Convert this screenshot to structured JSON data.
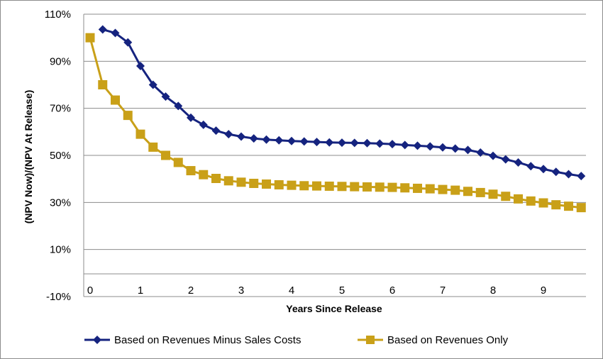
{
  "chart_data": {
    "type": "line",
    "title": "",
    "xlabel": "Years Since Release",
    "ylabel": "(NPV Now)/(NPV At Release)",
    "xlim": [
      0,
      9.85
    ],
    "ylim": [
      -10,
      110
    ],
    "x_ticks": [
      "0",
      "1",
      "2",
      "3",
      "4",
      "5",
      "6",
      "7",
      "8",
      "9"
    ],
    "y_ticks": [
      "-10%",
      "10%",
      "30%",
      "50%",
      "70%",
      "90%",
      "110%"
    ],
    "grid": true,
    "legend_position": "bottom",
    "series": [
      {
        "name": "Based on Revenues Minus Sales Costs",
        "color": "#15237f",
        "marker": "diamond",
        "x": [
          0.25,
          0.5,
          0.75,
          1,
          1.25,
          1.5,
          1.75,
          2,
          2.25,
          2.5,
          2.75,
          3,
          3.25,
          3.5,
          3.75,
          4,
          4.25,
          4.5,
          4.75,
          5,
          5.25,
          5.5,
          5.75,
          6,
          6.25,
          6.5,
          6.75,
          7,
          7.25,
          7.5,
          7.75,
          8,
          8.25,
          8.5,
          8.75,
          9,
          9.25,
          9.5,
          9.75
        ],
        "values": [
          103.5,
          102,
          98,
          88,
          80,
          75,
          71,
          66,
          63,
          60.5,
          59,
          58,
          57.2,
          56.7,
          56.4,
          56.1,
          55.9,
          55.7,
          55.5,
          55.4,
          55.3,
          55.2,
          55,
          54.8,
          54.4,
          54.1,
          53.8,
          53.4,
          52.9,
          52.3,
          51.2,
          49.8,
          48.3,
          47,
          45.4,
          44.2,
          43,
          42,
          41.2
        ]
      },
      {
        "name": "Based on Revenues Only",
        "color": "#c9a018",
        "marker": "square",
        "x": [
          0,
          0.25,
          0.5,
          0.75,
          1,
          1.25,
          1.5,
          1.75,
          2,
          2.25,
          2.5,
          2.75,
          3,
          3.25,
          3.5,
          3.75,
          4,
          4.25,
          4.5,
          4.75,
          5,
          5.25,
          5.5,
          5.75,
          6,
          6.25,
          6.5,
          6.75,
          7,
          7.25,
          7.5,
          7.75,
          8,
          8.25,
          8.5,
          8.75,
          9,
          9.25,
          9.5,
          9.75
        ],
        "values": [
          100,
          80,
          73.5,
          67,
          59,
          53.5,
          50,
          47,
          43.5,
          41.8,
          40.2,
          39.2,
          38.6,
          38.1,
          37.8,
          37.5,
          37.3,
          37.1,
          37,
          36.9,
          36.8,
          36.7,
          36.6,
          36.5,
          36.4,
          36.2,
          36,
          35.8,
          35.5,
          35.2,
          34.7,
          34.2,
          33.5,
          32.6,
          31.5,
          30.6,
          29.8,
          29,
          28.4,
          27.8
        ]
      }
    ]
  }
}
